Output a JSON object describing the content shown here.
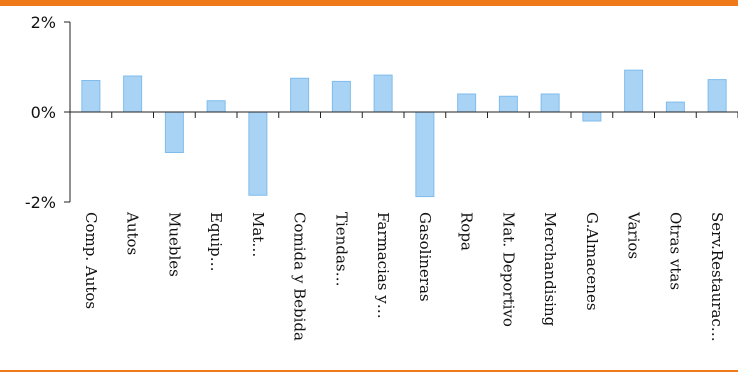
{
  "chart_data": {
    "type": "bar",
    "categories": [
      "Comp. Autos",
      "Autos",
      "Muebles",
      "Equip…",
      "Mat…",
      "Comida y Bebida",
      "Tiendas…",
      "Farmacias y…",
      "Gasolineras",
      "Ropa",
      "Mat. Deportivo",
      "Merchandising",
      "G.Almacenes",
      "Varios",
      "Otras vtas",
      "Serv.Restaurac…"
    ],
    "values": [
      0.7,
      0.8,
      -0.9,
      0.25,
      -1.85,
      0.75,
      0.68,
      0.82,
      -1.88,
      0.4,
      0.35,
      0.4,
      -0.2,
      0.93,
      0.22,
      0.72
    ],
    "ylim": [
      -2,
      2
    ],
    "yticks": [
      2,
      0,
      -2
    ],
    "ytick_labels": [
      "2%",
      "0%",
      "-2%"
    ],
    "grid": false,
    "bar_fill": "#a9d3f5",
    "bar_stroke": "#7fbcec",
    "accent": "#f07a1a"
  }
}
